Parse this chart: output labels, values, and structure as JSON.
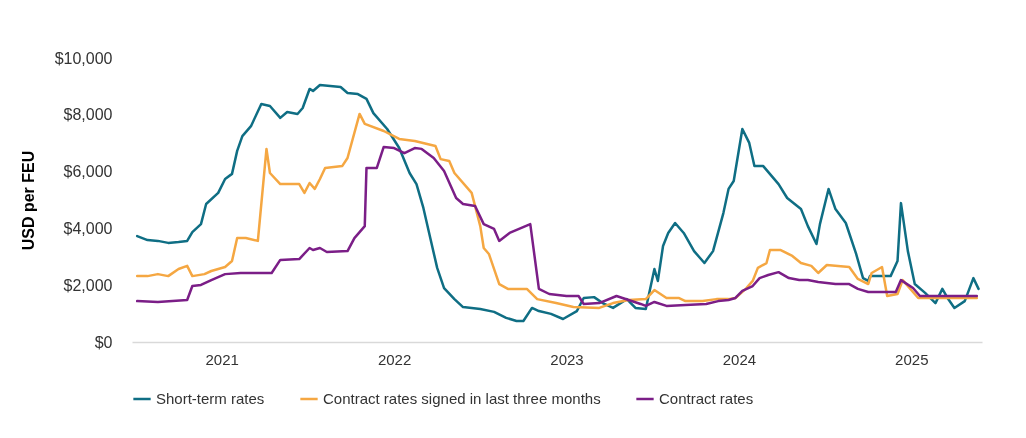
{
  "chart_data": {
    "type": "line",
    "ylabel": "USD per FEU",
    "xlim": [
      2020.48,
      2025.41
    ],
    "xticks": [
      2021,
      2022,
      2023,
      2024,
      2025
    ],
    "ylim": [
      0,
      10000
    ],
    "yticks": [
      {
        "value": 0,
        "label": "$0"
      },
      {
        "value": 2000,
        "label": "$2,000"
      },
      {
        "value": 4000,
        "label": "$4,000"
      },
      {
        "value": 6000,
        "label": "$6,000"
      },
      {
        "value": 8000,
        "label": "$8,000"
      },
      {
        "value": 10000,
        "label": "$10,000"
      }
    ],
    "legend": "bottom",
    "series": [
      {
        "name": "Short-term rates",
        "color": "#0f6e84",
        "x": [
          2020.51,
          2020.57,
          2020.63,
          2020.69,
          2020.75,
          2020.8,
          2020.83,
          2020.88,
          2020.91,
          2020.98,
          2021.02,
          2021.06,
          2021.09,
          2021.12,
          2021.17,
          2021.23,
          2021.28,
          2021.34,
          2021.38,
          2021.44,
          2021.47,
          2021.51,
          2021.53,
          2021.57,
          2021.69,
          2021.73,
          2021.79,
          2021.84,
          2021.88,
          2021.96,
          2022.03,
          2022.09,
          2022.13,
          2022.17,
          2022.21,
          2022.25,
          2022.29,
          2022.35,
          2022.4,
          2022.5,
          2022.58,
          2022.65,
          2022.71,
          2022.75,
          2022.8,
          2022.84,
          2022.91,
          2022.98,
          2023.06,
          2023.1,
          2023.16,
          2023.21,
          2023.27,
          2023.35,
          2023.4,
          2023.46,
          2023.51,
          2023.53,
          2023.56,
          2023.59,
          2023.63,
          2023.68,
          2023.74,
          2023.8,
          2023.85,
          2023.91,
          2023.94,
          2023.97,
          2024.02,
          2024.06,
          2024.09,
          2024.14,
          2024.23,
          2024.28,
          2024.36,
          2024.4,
          2024.45,
          2024.47,
          2024.52,
          2024.56,
          2024.62,
          2024.68,
          2024.72,
          2024.75,
          2024.76,
          2024.83,
          2024.88,
          2024.92,
          2024.94,
          2024.98,
          2025.02,
          2025.08,
          2025.14,
          2025.18,
          2025.21,
          2025.25,
          2025.31,
          2025.36,
          2025.39
        ],
        "values": [
          3730,
          3590,
          3560,
          3490,
          3520,
          3560,
          3870,
          4150,
          4860,
          5250,
          5740,
          5920,
          6730,
          7250,
          7600,
          8380,
          8310,
          7890,
          8100,
          8030,
          8240,
          8910,
          8840,
          9050,
          8980,
          8770,
          8730,
          8560,
          8060,
          7500,
          6830,
          5950,
          5560,
          4720,
          3660,
          2610,
          1900,
          1510,
          1230,
          1160,
          1060,
          850,
          740,
          740,
          1200,
          1090,
          990,
          810,
          1090,
          1550,
          1580,
          1370,
          1200,
          1510,
          1200,
          1160,
          2570,
          2150,
          3380,
          3840,
          4190,
          3840,
          3200,
          2780,
          3200,
          4540,
          5390,
          5670,
          7500,
          7010,
          6200,
          6200,
          5560,
          5070,
          4680,
          4080,
          3450,
          4150,
          5390,
          4680,
          4190,
          3100,
          2250,
          2150,
          2320,
          2320,
          2320,
          2850,
          4890,
          3200,
          2040,
          1730,
          1370,
          1870,
          1550,
          1200,
          1440,
          2250,
          1870
        ]
      },
      {
        "name": "Contract rates signed in last three months",
        "color": "#f5a742",
        "x": [
          2020.51,
          2020.57,
          2020.63,
          2020.69,
          2020.75,
          2020.8,
          2020.83,
          2020.9,
          2020.94,
          2021.02,
          2021.06,
          2021.09,
          2021.14,
          2021.21,
          2021.26,
          2021.28,
          2021.34,
          2021.45,
          2021.48,
          2021.51,
          2021.54,
          2021.57,
          2021.6,
          2021.7,
          2021.73,
          2021.8,
          2021.83,
          2021.94,
          2022.03,
          2022.12,
          2022.24,
          2022.27,
          2022.32,
          2022.35,
          2022.45,
          2022.5,
          2022.52,
          2022.55,
          2022.61,
          2022.66,
          2022.77,
          2022.83,
          2022.94,
          2023.04,
          2023.19,
          2023.27,
          2023.36,
          2023.46,
          2023.51,
          2023.58,
          2023.65,
          2023.69,
          2023.79,
          2023.87,
          2023.94,
          2023.98,
          2024.04,
          2024.08,
          2024.11,
          2024.16,
          2024.18,
          2024.24,
          2024.31,
          2024.36,
          2024.42,
          2024.46,
          2024.51,
          2024.64,
          2024.69,
          2024.75,
          2024.77,
          2024.83,
          2024.86,
          2024.92,
          2024.95,
          2025.04,
          2025.14,
          2025.38
        ],
        "values": [
          2320,
          2320,
          2390,
          2320,
          2570,
          2680,
          2320,
          2390,
          2500,
          2640,
          2850,
          3660,
          3660,
          3560,
          6800,
          5950,
          5560,
          5560,
          5250,
          5600,
          5390,
          5740,
          6130,
          6200,
          6480,
          8030,
          7680,
          7430,
          7150,
          7080,
          6900,
          6440,
          6370,
          5950,
          5250,
          4080,
          3310,
          3100,
          2040,
          1870,
          1870,
          1510,
          1370,
          1230,
          1200,
          1370,
          1480,
          1510,
          1830,
          1550,
          1550,
          1440,
          1440,
          1510,
          1510,
          1550,
          1870,
          2150,
          2610,
          2780,
          3240,
          3240,
          3030,
          2780,
          2680,
          2430,
          2710,
          2640,
          2220,
          2040,
          2430,
          2640,
          1620,
          1690,
          2180,
          1550,
          1550,
          1550
        ]
      },
      {
        "name": "Contract rates",
        "color": "#7b1e87",
        "x": [
          2020.51,
          2020.63,
          2020.8,
          2020.83,
          2020.88,
          2020.94,
          2021.02,
          2021.11,
          2021.29,
          2021.34,
          2021.45,
          2021.51,
          2021.53,
          2021.57,
          2021.61,
          2021.73,
          2021.77,
          2021.83,
          2021.84,
          2021.9,
          2021.94,
          2022.0,
          2022.06,
          2022.12,
          2022.16,
          2022.23,
          2022.29,
          2022.36,
          2022.4,
          2022.47,
          2022.52,
          2022.58,
          2022.61,
          2022.67,
          2022.79,
          2022.84,
          2022.9,
          2023.0,
          2023.07,
          2023.1,
          2023.19,
          2023.29,
          2023.36,
          2023.43,
          2023.46,
          2023.51,
          2023.58,
          2023.69,
          2023.81,
          2023.88,
          2023.94,
          2023.98,
          2024.02,
          2024.08,
          2024.12,
          2024.17,
          2024.23,
          2024.29,
          2024.35,
          2024.4,
          2024.46,
          2024.56,
          2024.64,
          2024.69,
          2024.75,
          2024.91,
          2024.94,
          2025.01,
          2025.05,
          2025.38
        ],
        "values": [
          1440,
          1410,
          1480,
          1970,
          2010,
          2180,
          2390,
          2430,
          2430,
          2890,
          2920,
          3310,
          3240,
          3310,
          3170,
          3200,
          3660,
          4080,
          6130,
          6130,
          6870,
          6830,
          6650,
          6830,
          6800,
          6480,
          6020,
          5070,
          4860,
          4790,
          4150,
          3980,
          3560,
          3840,
          4150,
          1870,
          1690,
          1620,
          1620,
          1340,
          1370,
          1620,
          1480,
          1340,
          1270,
          1410,
          1270,
          1300,
          1340,
          1440,
          1480,
          1550,
          1800,
          1970,
          2250,
          2360,
          2460,
          2250,
          2180,
          2180,
          2110,
          2040,
          2040,
          1870,
          1760,
          1760,
          2180,
          1900,
          1620,
          1620
        ]
      }
    ]
  }
}
